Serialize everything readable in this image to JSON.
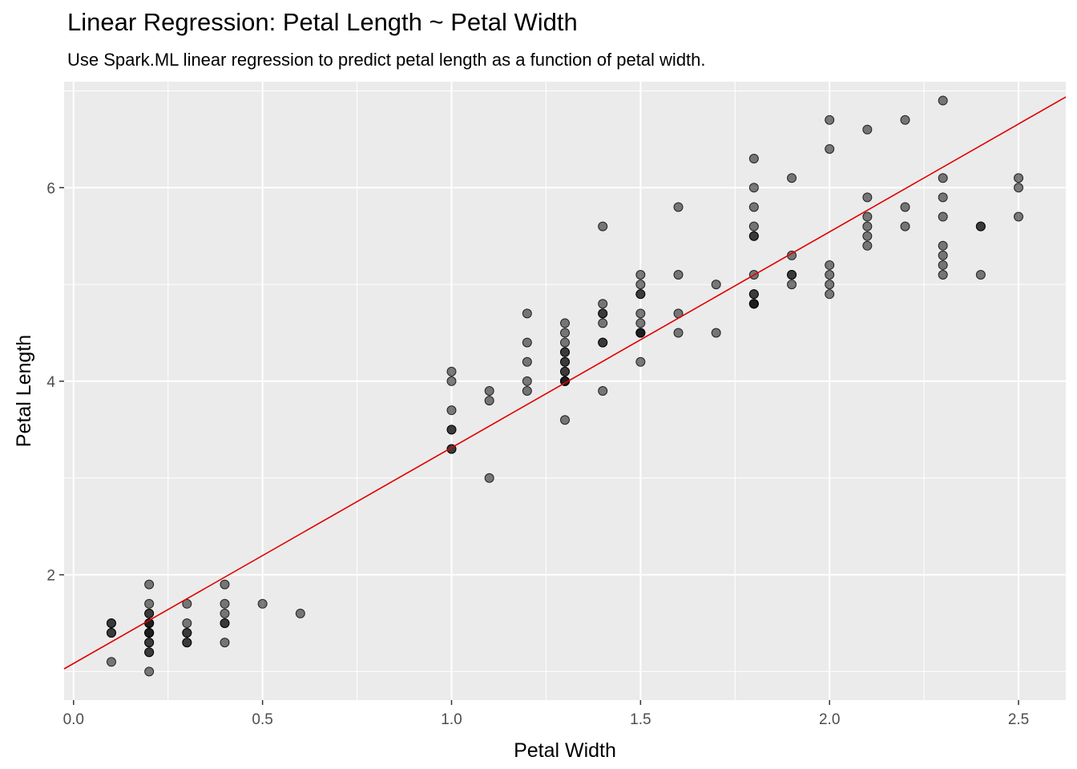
{
  "chart_data": {
    "type": "scatter",
    "title": "Linear Regression: Petal Length ~ Petal Width",
    "subtitle": "Use Spark.ML linear regression to predict petal length as a function of petal width.",
    "xlabel": "Petal Width",
    "ylabel": "Petal Length",
    "xlim": [
      -0.025,
      2.625
    ],
    "ylim": [
      0.705,
      7.095
    ],
    "x_ticks": [
      0.0,
      0.5,
      1.0,
      1.5,
      2.0,
      2.5
    ],
    "x_tick_labels": [
      "0.0",
      "0.5",
      "1.0",
      "1.5",
      "2.0",
      "2.5"
    ],
    "y_ticks": [
      2,
      4,
      6
    ],
    "y_tick_labels": [
      "2",
      "4",
      "6"
    ],
    "grid": true,
    "background": "#ebebeb",
    "point_color": "#000000",
    "point_opacity": 0.5,
    "line_color": "#e00000",
    "regression_line": {
      "intercept": 1.0836,
      "slope": 2.2299
    },
    "points": [
      [
        0.1,
        1.1
      ],
      [
        0.1,
        1.4
      ],
      [
        0.1,
        1.5
      ],
      [
        0.1,
        1.4
      ],
      [
        0.1,
        1.5
      ],
      [
        0.2,
        1.0
      ],
      [
        0.2,
        1.2
      ],
      [
        0.2,
        1.3
      ],
      [
        0.2,
        1.4
      ],
      [
        0.2,
        1.5
      ],
      [
        0.2,
        1.6
      ],
      [
        0.2,
        1.7
      ],
      [
        0.2,
        1.9
      ],
      [
        0.2,
        1.4
      ],
      [
        0.2,
        1.5
      ],
      [
        0.2,
        1.3
      ],
      [
        0.2,
        1.6
      ],
      [
        0.2,
        1.2
      ],
      [
        0.2,
        1.4
      ],
      [
        0.2,
        1.5
      ],
      [
        0.3,
        1.3
      ],
      [
        0.3,
        1.4
      ],
      [
        0.3,
        1.5
      ],
      [
        0.3,
        1.7
      ],
      [
        0.3,
        1.3
      ],
      [
        0.3,
        1.4
      ],
      [
        0.4,
        1.3
      ],
      [
        0.4,
        1.5
      ],
      [
        0.4,
        1.6
      ],
      [
        0.4,
        1.7
      ],
      [
        0.4,
        1.9
      ],
      [
        0.4,
        1.5
      ],
      [
        0.5,
        1.7
      ],
      [
        0.6,
        1.6
      ],
      [
        1.0,
        3.3
      ],
      [
        1.0,
        3.5
      ],
      [
        1.0,
        3.7
      ],
      [
        1.0,
        4.0
      ],
      [
        1.0,
        4.1
      ],
      [
        1.0,
        3.3
      ],
      [
        1.0,
        3.5
      ],
      [
        1.1,
        3.0
      ],
      [
        1.1,
        3.8
      ],
      [
        1.1,
        3.9
      ],
      [
        1.2,
        3.9
      ],
      [
        1.2,
        4.0
      ],
      [
        1.2,
        4.2
      ],
      [
        1.2,
        4.4
      ],
      [
        1.2,
        4.7
      ],
      [
        1.3,
        3.6
      ],
      [
        1.3,
        4.0
      ],
      [
        1.3,
        4.1
      ],
      [
        1.3,
        4.2
      ],
      [
        1.3,
        4.3
      ],
      [
        1.3,
        4.4
      ],
      [
        1.3,
        4.5
      ],
      [
        1.3,
        4.6
      ],
      [
        1.3,
        4.0
      ],
      [
        1.3,
        4.1
      ],
      [
        1.3,
        4.2
      ],
      [
        1.3,
        4.3
      ],
      [
        1.3,
        4.0
      ],
      [
        1.4,
        3.9
      ],
      [
        1.4,
        4.4
      ],
      [
        1.4,
        4.6
      ],
      [
        1.4,
        4.7
      ],
      [
        1.4,
        4.8
      ],
      [
        1.4,
        5.6
      ],
      [
        1.4,
        4.4
      ],
      [
        1.4,
        4.7
      ],
      [
        1.5,
        4.2
      ],
      [
        1.5,
        4.5
      ],
      [
        1.5,
        4.6
      ],
      [
        1.5,
        4.7
      ],
      [
        1.5,
        4.9
      ],
      [
        1.5,
        5.0
      ],
      [
        1.5,
        5.1
      ],
      [
        1.5,
        4.5
      ],
      [
        1.5,
        4.9
      ],
      [
        1.5,
        4.5
      ],
      [
        1.6,
        4.5
      ],
      [
        1.6,
        4.7
      ],
      [
        1.6,
        5.1
      ],
      [
        1.6,
        5.8
      ],
      [
        1.7,
        4.5
      ],
      [
        1.7,
        5.0
      ],
      [
        1.8,
        4.8
      ],
      [
        1.8,
        4.9
      ],
      [
        1.8,
        5.1
      ],
      [
        1.8,
        5.5
      ],
      [
        1.8,
        5.6
      ],
      [
        1.8,
        5.8
      ],
      [
        1.8,
        6.0
      ],
      [
        1.8,
        6.3
      ],
      [
        1.8,
        4.8
      ],
      [
        1.8,
        4.9
      ],
      [
        1.8,
        5.5
      ],
      [
        1.8,
        4.8
      ],
      [
        1.9,
        5.0
      ],
      [
        1.9,
        5.1
      ],
      [
        1.9,
        5.3
      ],
      [
        1.9,
        6.1
      ],
      [
        1.9,
        5.1
      ],
      [
        2.0,
        4.9
      ],
      [
        2.0,
        5.0
      ],
      [
        2.0,
        5.1
      ],
      [
        2.0,
        5.2
      ],
      [
        2.0,
        6.4
      ],
      [
        2.0,
        6.7
      ],
      [
        2.1,
        5.4
      ],
      [
        2.1,
        5.5
      ],
      [
        2.1,
        5.6
      ],
      [
        2.1,
        5.7
      ],
      [
        2.1,
        5.9
      ],
      [
        2.1,
        6.6
      ],
      [
        2.2,
        5.6
      ],
      [
        2.2,
        5.8
      ],
      [
        2.2,
        6.7
      ],
      [
        2.3,
        5.1
      ],
      [
        2.3,
        5.2
      ],
      [
        2.3,
        5.3
      ],
      [
        2.3,
        5.4
      ],
      [
        2.3,
        5.7
      ],
      [
        2.3,
        5.9
      ],
      [
        2.3,
        6.1
      ],
      [
        2.3,
        6.9
      ],
      [
        2.4,
        5.1
      ],
      [
        2.4,
        5.6
      ],
      [
        2.4,
        5.6
      ],
      [
        2.5,
        5.7
      ],
      [
        2.5,
        6.0
      ],
      [
        2.5,
        6.1
      ]
    ]
  }
}
